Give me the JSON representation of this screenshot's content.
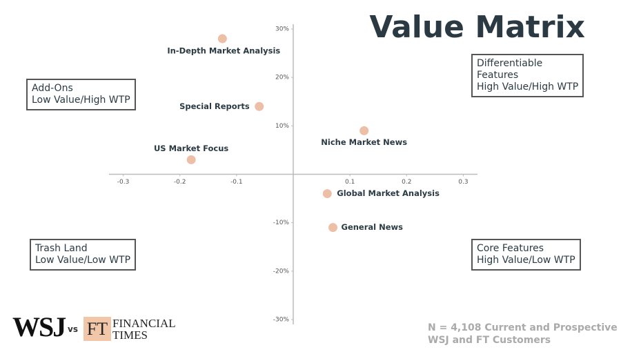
{
  "chart_data": {
    "type": "scatter",
    "title": "Value Matrix",
    "labels": [
      "In-Depth Market Analysis",
      "Special Reports",
      "US Market Focus",
      "Niche Market News",
      "Global Market Analysis",
      "General News"
    ],
    "x": [
      -0.125,
      -0.06,
      -0.18,
      0.125,
      0.06,
      0.07
    ],
    "values": [
      28,
      14,
      3,
      9,
      -4,
      -11
    ],
    "color": "#ecbfa6",
    "xlim": [
      -0.325,
      0.325
    ],
    "ylim": [
      -31,
      31
    ],
    "xticks": [
      -0.3,
      -0.2,
      -0.1,
      0.1,
      0.2,
      0.3
    ],
    "yticks": [
      {
        "value": 30,
        "label": "30%"
      },
      {
        "value": 20,
        "label": "20%"
      },
      {
        "value": 10,
        "label": "10%"
      },
      {
        "value": -10,
        "label": "-10%"
      },
      {
        "value": -20,
        "label": "-20%"
      },
      {
        "value": -30,
        "label": "-30%"
      }
    ]
  },
  "quadrants": [
    {
      "lines": [
        "Add-Ons",
        "Low Value/High WTP"
      ]
    },
    {
      "lines": [
        "Differentiable",
        "Features",
        "High Value/High WTP"
      ]
    },
    {
      "lines": [
        "Trash Land",
        "Low Value/Low WTP"
      ]
    },
    {
      "lines": [
        "Core Features",
        "High Value/Low WTP"
      ]
    }
  ],
  "logos": {
    "wsj": "WSJ",
    "vs": "vs",
    "ft": "FT",
    "ft_name": [
      "FINANCIAL",
      "TIMES"
    ]
  },
  "note": [
    "N = 4,108 Current and Prospective",
    "WSJ and FT Customers"
  ]
}
